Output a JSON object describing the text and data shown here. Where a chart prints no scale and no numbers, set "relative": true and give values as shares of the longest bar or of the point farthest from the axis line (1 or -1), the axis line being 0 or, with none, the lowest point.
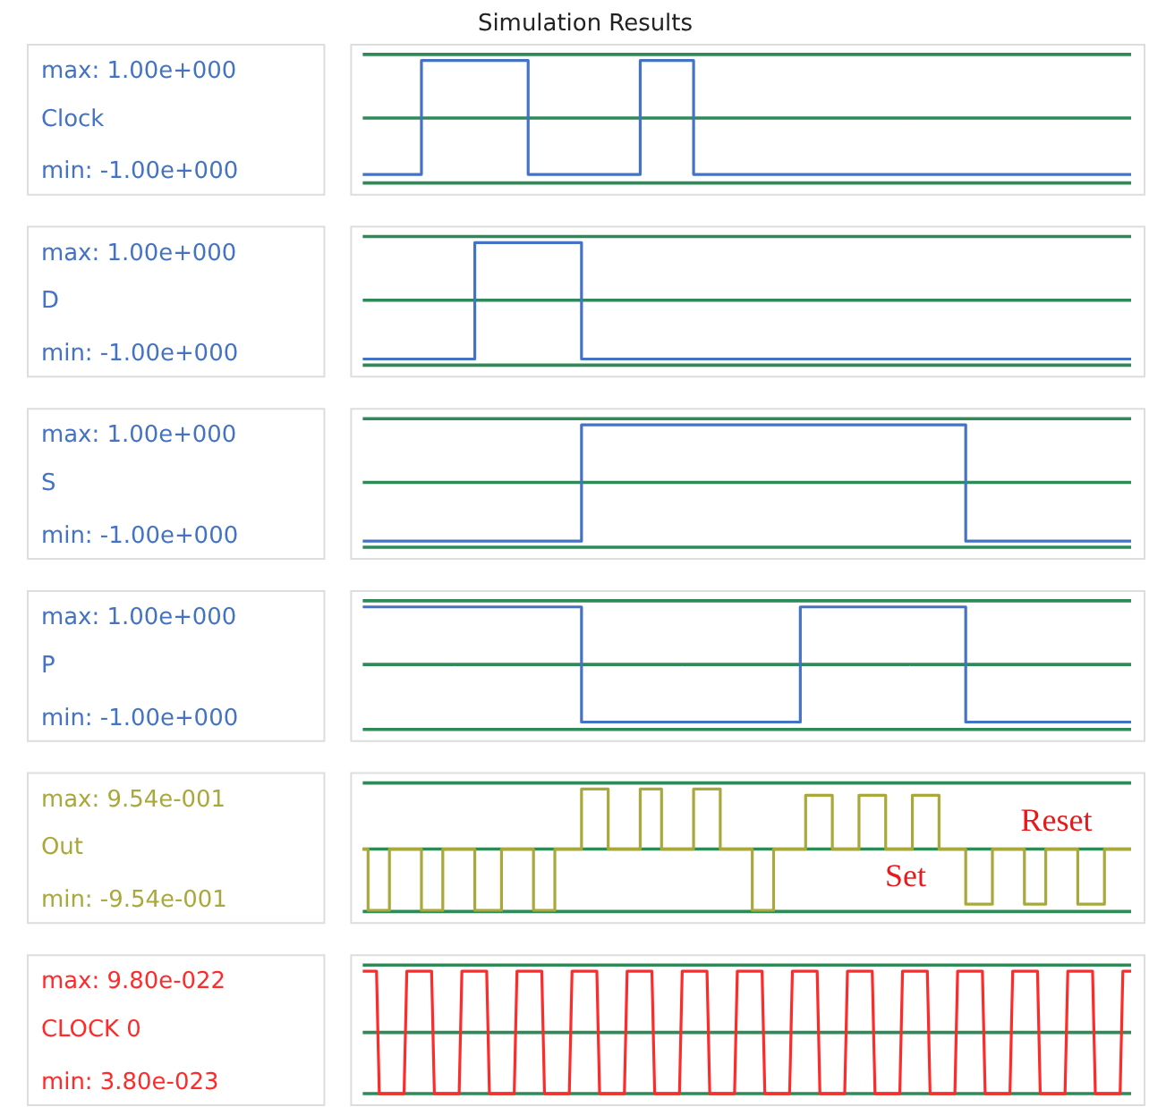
{
  "chart_data": [
    {
      "type": "step",
      "title": "Simulation Results",
      "ylabel": "Clock",
      "relative": true,
      "tick_labels": false,
      "annotations": [
        "max: 1.00e+000",
        "min: -1.00e+000"
      ],
      "categories": [
        null,
        null,
        null,
        null,
        null,
        null,
        null,
        null,
        null,
        null,
        null,
        null,
        null,
        null,
        null,
        null,
        null,
        null,
        null,
        null,
        null,
        null,
        null,
        null,
        null,
        null,
        null,
        null,
        null,
        null,
        null,
        null,
        null,
        null,
        null,
        null,
        null,
        null,
        null,
        null,
        null,
        null,
        null,
        null,
        null,
        null,
        null,
        null,
        null,
        null,
        null,
        null,
        null,
        null,
        null,
        null,
        null,
        null,
        null,
        null,
        null,
        null,
        null,
        null,
        null,
        null,
        null,
        null,
        null,
        null,
        null,
        null,
        null,
        null,
        null,
        null,
        null,
        null,
        null,
        null,
        null,
        null,
        null,
        null,
        null,
        null,
        null,
        null,
        null,
        null,
        null,
        null,
        null,
        null,
        null,
        null,
        null,
        null,
        null,
        null,
        null,
        null,
        null,
        null,
        null,
        null,
        null,
        null,
        null,
        null,
        null,
        null,
        null,
        null,
        null,
        null,
        null,
        null,
        null,
        null,
        null,
        null,
        null,
        null,
        null,
        null,
        null,
        null,
        null,
        null,
        null,
        null,
        null,
        null,
        null,
        null,
        null,
        null,
        null,
        null,
        null,
        null,
        null,
        null,
        null
      ],
      "series": [
        {
          "color": "#4472c4",
          "values": [
            0.07,
            0.07,
            0.07,
            0.07,
            0.07,
            0.07,
            0.07,
            0.07,
            0.07,
            0.07,
            0.07,
            1,
            1,
            1,
            1,
            1,
            1,
            1,
            1,
            1,
            1,
            1,
            1,
            1,
            1,
            1,
            1,
            1,
            1,
            1,
            1,
            0.07,
            0.07,
            0.07,
            0.07,
            0.07,
            0.07,
            0.07,
            0.07,
            0.07,
            0.07,
            0.07,
            0.07,
            0.07,
            0.07,
            0.07,
            0.07,
            0.07,
            0.07,
            0.07,
            0.07,
            0.07,
            1,
            1,
            1,
            1,
            1,
            1,
            1,
            1,
            1,
            1,
            0.07,
            0.07,
            0.07,
            0.07,
            0.07,
            0.07,
            0.07,
            0.07,
            0.07,
            0.07,
            0.07,
            0.07,
            0.07,
            0.07,
            0.07,
            0.07,
            0.07,
            0.07,
            0.07,
            0.07,
            0.07,
            0.07,
            0.07,
            0.07,
            0.07,
            0.07,
            0.07,
            0.07,
            0.07,
            0.07,
            0.07,
            0.07,
            0.07,
            0.07,
            0.07,
            0.07,
            0.07,
            0.07,
            0.07,
            0.07,
            0.07,
            0.07,
            0.07,
            0.07,
            0.07,
            0.07,
            0.07,
            0.07,
            0.07,
            0.07,
            0.07,
            0.07,
            0.07,
            0.07,
            0.07,
            0.07,
            0.07,
            0.07,
            0.07,
            0.07,
            0.07,
            0.07,
            0.07,
            0.07,
            0.07,
            0.07,
            0.07,
            0.07,
            0.07,
            0.07,
            0.07,
            0.07,
            0.07,
            0.07,
            0.07,
            0.07,
            0.07,
            0.07,
            0.07,
            0.07,
            0.07,
            0.07,
            0.07
          ]
        }
      ],
      "ref_lines": [
        {
          "axis": "y",
          "value": 0.53,
          "color": "#2e8b57"
        }
      ]
    },
    {
      "type": "step",
      "ylabel": "D",
      "relative": true,
      "tick_labels": false,
      "annotations": [
        "max: 1.00e+000",
        "min: -1.00e+000"
      ],
      "categories": [
        null,
        null,
        null,
        null,
        null,
        null,
        null,
        null,
        null,
        null,
        null,
        null,
        null,
        null,
        null,
        null,
        null,
        null,
        null,
        null,
        null,
        null,
        null,
        null,
        null,
        null,
        null,
        null,
        null,
        null,
        null,
        null,
        null,
        null,
        null,
        null,
        null,
        null,
        null,
        null,
        null,
        null,
        null,
        null,
        null,
        null,
        null,
        null,
        null,
        null,
        null,
        null,
        null,
        null,
        null,
        null,
        null,
        null,
        null,
        null,
        null,
        null,
        null,
        null,
        null,
        null,
        null,
        null,
        null,
        null,
        null,
        null,
        null,
        null,
        null,
        null,
        null,
        null,
        null,
        null,
        null,
        null,
        null,
        null,
        null,
        null,
        null,
        null,
        null,
        null,
        null,
        null,
        null,
        null,
        null,
        null,
        null,
        null,
        null,
        null,
        null,
        null,
        null,
        null,
        null,
        null,
        null,
        null,
        null,
        null,
        null,
        null,
        null,
        null,
        null,
        null,
        null,
        null,
        null,
        null,
        null,
        null,
        null,
        null,
        null,
        null,
        null,
        null,
        null,
        null,
        null,
        null,
        null,
        null,
        null,
        null,
        null,
        null,
        null,
        null,
        null,
        null,
        null,
        null,
        null
      ],
      "series": [
        {
          "color": "#4472c4",
          "values": [
            0.05,
            0.05,
            0.05,
            0.05,
            0.05,
            0.05,
            0.05,
            0.05,
            0.05,
            0.05,
            0.05,
            0.05,
            0.05,
            0.05,
            0.05,
            0.05,
            0.05,
            0.05,
            0.05,
            0.05,
            0.05,
            1,
            1,
            1,
            1,
            1,
            1,
            1,
            1,
            1,
            1,
            1,
            1,
            1,
            1,
            1,
            1,
            1,
            1,
            1,
            1,
            0.05,
            0.05,
            0.05,
            0.05,
            0.05,
            0.05,
            0.05,
            0.05,
            0.05,
            0.05,
            0.05,
            0.05,
            0.05,
            0.05,
            0.05,
            0.05,
            0.05,
            0.05,
            0.05,
            0.05,
            0.05,
            0.05,
            0.05,
            0.05,
            0.05,
            0.05,
            0.05,
            0.05,
            0.05,
            0.05,
            0.05,
            0.05,
            0.05,
            0.05,
            0.05,
            0.05,
            0.05,
            0.05,
            0.05,
            0.05,
            0.05,
            0.05,
            0.05,
            0.05,
            0.05,
            0.05,
            0.05,
            0.05,
            0.05,
            0.05,
            0.05,
            0.05,
            0.05,
            0.05,
            0.05,
            0.05,
            0.05,
            0.05,
            0.05,
            0.05,
            0.05,
            0.05,
            0.05,
            0.05,
            0.05,
            0.05,
            0.05,
            0.05,
            0.05,
            0.05,
            0.05,
            0.05,
            0.05,
            0.05,
            0.05,
            0.05,
            0.05,
            0.05,
            0.05,
            0.05,
            0.05,
            0.05,
            0.05,
            0.05,
            0.05,
            0.05,
            0.05,
            0.05,
            0.05,
            0.05,
            0.05,
            0.05,
            0.05,
            0.05,
            0.05,
            0.05,
            0.05,
            0.05,
            0.05,
            0.05,
            0.05,
            0.05,
            0.05,
            0.05
          ]
        }
      ],
      "ref_lines": [
        {
          "axis": "y",
          "value": 0.53,
          "color": "#2e8b57"
        }
      ]
    },
    {
      "type": "step",
      "ylabel": "S",
      "relative": true,
      "tick_labels": false,
      "annotations": [
        "max: 1.00e+000",
        "min: -1.00e+000"
      ],
      "categories": [
        null,
        null,
        null,
        null,
        null,
        null,
        null,
        null,
        null,
        null,
        null,
        null,
        null,
        null,
        null,
        null,
        null,
        null,
        null,
        null,
        null,
        null,
        null,
        null,
        null,
        null,
        null,
        null,
        null,
        null,
        null,
        null,
        null,
        null,
        null,
        null,
        null,
        null,
        null,
        null,
        null,
        null,
        null,
        null,
        null,
        null,
        null,
        null,
        null,
        null,
        null,
        null,
        null,
        null,
        null,
        null,
        null,
        null,
        null,
        null,
        null,
        null,
        null,
        null,
        null,
        null,
        null,
        null,
        null,
        null,
        null,
        null,
        null,
        null,
        null,
        null,
        null,
        null,
        null,
        null,
        null,
        null,
        null,
        null,
        null,
        null,
        null,
        null,
        null,
        null,
        null,
        null,
        null,
        null,
        null,
        null,
        null,
        null,
        null,
        null,
        null,
        null,
        null,
        null,
        null,
        null,
        null,
        null,
        null,
        null,
        null,
        null,
        null,
        null,
        null,
        null,
        null,
        null,
        null,
        null,
        null,
        null,
        null,
        null,
        null,
        null,
        null,
        null,
        null,
        null,
        null,
        null,
        null,
        null,
        null,
        null,
        null,
        null,
        null,
        null,
        null,
        null,
        null,
        null,
        null
      ],
      "series": [
        {
          "color": "#4472c4",
          "values": [
            0.05,
            0.05,
            0.05,
            0.05,
            0.05,
            0.05,
            0.05,
            0.05,
            0.05,
            0.05,
            0.05,
            0.05,
            0.05,
            0.05,
            0.05,
            0.05,
            0.05,
            0.05,
            0.05,
            0.05,
            0.05,
            0.05,
            0.05,
            0.05,
            0.05,
            0.05,
            0.05,
            0.05,
            0.05,
            0.05,
            0.05,
            0.05,
            0.05,
            0.05,
            0.05,
            0.05,
            0.05,
            0.05,
            0.05,
            0.05,
            0.05,
            1,
            1,
            1,
            1,
            1,
            1,
            1,
            1,
            1,
            1,
            1,
            1,
            1,
            1,
            1,
            1,
            1,
            1,
            1,
            1,
            1,
            1,
            1,
            1,
            1,
            1,
            1,
            1,
            1,
            1,
            1,
            1,
            1,
            1,
            1,
            1,
            1,
            1,
            1,
            1,
            1,
            1,
            1,
            1,
            1,
            1,
            1,
            1,
            1,
            1,
            1,
            1,
            1,
            1,
            1,
            1,
            1,
            1,
            1,
            1,
            1,
            1,
            1,
            1,
            1,
            1,
            1,
            1,
            1,
            1,
            1,
            1,
            0.05,
            0.05,
            0.05,
            0.05,
            0.05,
            0.05,
            0.05,
            0.05,
            0.05,
            0.05,
            0.05,
            0.05,
            0.05,
            0.05,
            0.05,
            0.05,
            0.05,
            0.05,
            0.05,
            0.05,
            0.05,
            0.05,
            0.05,
            0.05,
            0.05,
            0.05,
            0.05,
            0.05,
            0.05,
            0.05,
            0.05,
            0.05
          ]
        }
      ],
      "ref_lines": [
        {
          "axis": "y",
          "value": 0.53,
          "color": "#2e8b57"
        }
      ]
    },
    {
      "type": "step",
      "ylabel": "P",
      "relative": true,
      "tick_labels": false,
      "annotations": [
        "max: 1.00e+000",
        "min: -1.00e+000"
      ],
      "categories": [
        null,
        null,
        null,
        null,
        null,
        null,
        null,
        null,
        null,
        null,
        null,
        null,
        null,
        null,
        null,
        null,
        null,
        null,
        null,
        null,
        null,
        null,
        null,
        null,
        null,
        null,
        null,
        null,
        null,
        null,
        null,
        null,
        null,
        null,
        null,
        null,
        null,
        null,
        null,
        null,
        null,
        null,
        null,
        null,
        null,
        null,
        null,
        null,
        null,
        null,
        null,
        null,
        null,
        null,
        null,
        null,
        null,
        null,
        null,
        null,
        null,
        null,
        null,
        null,
        null,
        null,
        null,
        null,
        null,
        null,
        null,
        null,
        null,
        null,
        null,
        null,
        null,
        null,
        null,
        null,
        null,
        null,
        null,
        null,
        null,
        null,
        null,
        null,
        null,
        null,
        null,
        null,
        null,
        null,
        null,
        null,
        null,
        null,
        null,
        null,
        null,
        null,
        null,
        null,
        null,
        null,
        null,
        null,
        null,
        null,
        null,
        null,
        null,
        null,
        null,
        null,
        null,
        null,
        null,
        null,
        null,
        null,
        null,
        null,
        null,
        null,
        null,
        null,
        null,
        null,
        null,
        null,
        null,
        null,
        null,
        null,
        null,
        null,
        null,
        null,
        null,
        null,
        null,
        null,
        null
      ],
      "series": [
        {
          "color": "#4472c4",
          "values": [
            1,
            1,
            1,
            1,
            1,
            1,
            1,
            1,
            1,
            1,
            1,
            1,
            1,
            1,
            1,
            1,
            1,
            1,
            1,
            1,
            1,
            1,
            1,
            1,
            1,
            1,
            1,
            1,
            1,
            1,
            1,
            1,
            1,
            1,
            1,
            1,
            1,
            1,
            1,
            1,
            1,
            0.06,
            0.06,
            0.06,
            0.06,
            0.06,
            0.06,
            0.06,
            0.06,
            0.06,
            0.06,
            0.06,
            0.06,
            0.06,
            0.06,
            0.06,
            0.06,
            0.06,
            0.06,
            0.06,
            0.06,
            0.06,
            0.06,
            0.06,
            0.06,
            0.06,
            0.06,
            0.06,
            0.06,
            0.06,
            0.06,
            0.06,
            0.06,
            0.06,
            0.06,
            0.06,
            0.06,
            0.06,
            0.06,
            0.06,
            0.06,
            0.06,
            1,
            1,
            1,
            1,
            1,
            1,
            1,
            1,
            1,
            1,
            1,
            1,
            1,
            1,
            1,
            1,
            1,
            1,
            1,
            1,
            1,
            1,
            1,
            1,
            1,
            1,
            1,
            1,
            1,
            1,
            1,
            0.06,
            0.06,
            0.06,
            0.06,
            0.06,
            0.06,
            0.06,
            0.06,
            0.06,
            0.06,
            0.06,
            0.06,
            0.06,
            0.06,
            0.06,
            0.06,
            0.06,
            0.06,
            0.06,
            0.06,
            0.06,
            0.06,
            0.06,
            0.06,
            0.06,
            0.06,
            0.06,
            0.06,
            0.06,
            0.06,
            0.06,
            0.06
          ]
        }
      ],
      "ref_lines": [
        {
          "axis": "y",
          "value": 0.53,
          "color": "#2e8b57"
        }
      ]
    },
    {
      "type": "step",
      "ylabel": "Out",
      "relative": true,
      "tick_labels": false,
      "annotations": [
        "max: 9.54e-001",
        "min: -9.54e-001",
        "Reset",
        "Set"
      ],
      "categories": [
        null,
        null,
        null,
        null,
        null,
        null,
        null,
        null,
        null,
        null,
        null,
        null,
        null,
        null,
        null,
        null,
        null,
        null,
        null,
        null,
        null,
        null,
        null,
        null,
        null,
        null,
        null,
        null,
        null,
        null,
        null,
        null,
        null,
        null,
        null,
        null,
        null,
        null,
        null,
        null,
        null,
        null,
        null,
        null,
        null,
        null,
        null,
        null,
        null,
        null,
        null,
        null,
        null,
        null,
        null,
        null,
        null,
        null,
        null,
        null,
        null,
        null,
        null,
        null,
        null,
        null,
        null,
        null,
        null,
        null,
        null,
        null,
        null,
        null,
        null,
        null,
        null,
        null,
        null,
        null,
        null,
        null,
        null,
        null,
        null,
        null,
        null,
        null,
        null,
        null,
        null,
        null,
        null,
        null,
        null,
        null,
        null,
        null,
        null,
        null,
        null,
        null,
        null,
        null,
        null,
        null,
        null,
        null,
        null,
        null,
        null,
        null,
        null,
        null,
        null,
        null,
        null,
        null,
        null,
        null,
        null,
        null,
        null,
        null,
        null,
        null,
        null,
        null,
        null,
        null,
        null,
        null,
        null,
        null,
        null,
        null,
        null,
        null,
        null,
        null,
        null,
        null,
        null,
        null,
        null
      ],
      "series": [
        {
          "color": "#a9a83a",
          "values": [
            0.51,
            0.01,
            0.01,
            0.01,
            0.01,
            0.51,
            0.51,
            0.51,
            0.51,
            0.51,
            0.51,
            0.01,
            0.01,
            0.01,
            0.01,
            0.51,
            0.51,
            0.51,
            0.51,
            0.51,
            0.51,
            0.01,
            0.01,
            0.01,
            0.01,
            0.01,
            0.51,
            0.51,
            0.51,
            0.51,
            0.51,
            0.51,
            0.01,
            0.01,
            0.01,
            0.01,
            0.51,
            0.51,
            0.51,
            0.51,
            0.51,
            1,
            1,
            1,
            1,
            1,
            0.51,
            0.51,
            0.51,
            0.51,
            0.51,
            0.51,
            1,
            1,
            1,
            1,
            0.51,
            0.51,
            0.51,
            0.51,
            0.51,
            0.51,
            1,
            1,
            1,
            1,
            1,
            0.51,
            0.51,
            0.51,
            0.51,
            0.51,
            0.51,
            0.01,
            0.01,
            0.01,
            0.01,
            0.51,
            0.51,
            0.51,
            0.51,
            0.51,
            0.51,
            0.95,
            0.95,
            0.95,
            0.95,
            0.95,
            0.51,
            0.51,
            0.51,
            0.51,
            0.51,
            0.95,
            0.95,
            0.95,
            0.95,
            0.95,
            0.51,
            0.51,
            0.51,
            0.51,
            0.51,
            0.95,
            0.95,
            0.95,
            0.95,
            0.95,
            0.51,
            0.51,
            0.51,
            0.51,
            0.51,
            0.06,
            0.06,
            0.06,
            0.06,
            0.06,
            0.51,
            0.51,
            0.51,
            0.51,
            0.51,
            0.51,
            0.06,
            0.06,
            0.06,
            0.06,
            0.51,
            0.51,
            0.51,
            0.51,
            0.51,
            0.51,
            0.06,
            0.06,
            0.06,
            0.06,
            0.06,
            0.51,
            0.51,
            0.51,
            0.51,
            0.51,
            0.51
          ]
        }
      ],
      "ref_lines": [
        {
          "axis": "y",
          "value": 0.51,
          "color": "#2e8b57"
        }
      ]
    },
    {
      "type": "line",
      "ylabel": "CLOCK 0",
      "relative": true,
      "tick_labels": false,
      "annotations": [
        "max: 9.80e-022",
        "min: 3.80e-023"
      ],
      "categories": [
        null,
        null,
        null,
        null,
        null,
        null,
        null,
        null,
        null,
        null,
        null,
        null,
        null,
        null,
        null,
        null,
        null,
        null,
        null,
        null,
        null,
        null,
        null,
        null,
        null,
        null,
        null,
        null,
        null,
        null,
        null,
        null,
        null,
        null,
        null,
        null,
        null,
        null,
        null,
        null,
        null,
        null,
        null,
        null,
        null,
        null,
        null,
        null,
        null,
        null,
        null,
        null,
        null,
        null,
        null,
        null,
        null,
        null,
        null,
        null,
        null,
        null,
        null,
        null,
        null,
        null,
        null,
        null,
        null,
        null,
        null,
        null,
        null,
        null,
        null,
        null,
        null,
        null,
        null,
        null,
        null,
        null,
        null,
        null,
        null,
        null,
        null,
        null,
        null,
        null,
        null,
        null,
        null,
        null,
        null,
        null,
        null,
        null,
        null,
        null,
        null,
        null,
        null,
        null,
        null,
        null,
        null,
        null,
        null,
        null,
        null,
        null,
        null,
        null,
        null,
        null,
        null,
        null,
        null,
        null,
        null,
        null,
        null,
        null,
        null,
        null,
        null,
        null,
        null,
        null,
        null,
        null,
        null,
        null,
        null,
        null,
        null,
        null,
        null,
        null,
        null,
        null,
        null,
        null,
        null,
        null,
        null,
        null,
        null,
        null,
        null,
        null,
        null,
        null,
        null,
        null,
        null,
        null,
        null,
        null,
        null,
        null,
        null,
        null,
        null,
        null,
        null,
        null,
        null,
        null,
        null,
        null,
        null,
        null,
        null,
        null,
        null,
        null,
        null,
        null,
        null,
        null,
        null,
        null,
        null,
        null,
        null,
        null,
        null,
        null,
        null,
        null,
        null,
        null,
        null,
        null,
        null,
        null,
        null,
        null,
        null,
        null,
        null,
        null,
        null,
        null,
        null,
        null,
        null,
        null,
        null,
        null,
        null,
        null,
        null,
        null,
        null,
        null,
        null,
        null,
        null,
        null,
        null,
        null,
        null,
        null,
        null,
        null,
        null,
        null,
        null,
        null,
        null,
        null,
        null,
        null,
        null,
        null,
        null,
        null,
        null,
        null,
        null,
        null,
        null,
        null,
        null,
        null,
        null,
        null,
        null,
        null,
        null,
        null,
        null,
        null,
        null,
        null,
        null,
        null,
        null,
        null,
        null,
        null,
        null,
        null,
        null,
        null,
        null,
        null,
        null,
        null,
        null,
        null,
        null,
        null,
        null,
        null,
        null,
        null
      ],
      "series": [
        {
          "color": "#ff2a2a",
          "values": [
            1,
            1,
            1,
            1,
            1,
            1,
            0,
            0,
            0,
            0,
            0,
            0,
            0,
            0,
            0,
            0,
            1,
            1,
            1,
            1,
            1,
            1,
            1,
            1,
            1,
            1,
            0,
            0,
            0,
            0,
            0,
            0,
            0,
            0,
            0,
            0,
            1,
            1,
            1,
            1,
            1,
            1,
            1,
            1,
            1,
            1,
            0,
            0,
            0,
            0,
            0,
            0,
            0,
            0,
            0,
            0,
            1,
            1,
            1,
            1,
            1,
            1,
            1,
            1,
            1,
            1,
            0,
            0,
            0,
            0,
            0,
            0,
            0,
            0,
            0,
            0,
            1,
            1,
            1,
            1,
            1,
            1,
            1,
            1,
            1,
            1,
            0,
            0,
            0,
            0,
            0,
            0,
            0,
            0,
            0,
            0,
            1,
            1,
            1,
            1,
            1,
            1,
            1,
            1,
            1,
            1,
            0,
            0,
            0,
            0,
            0,
            0,
            0,
            0,
            0,
            0,
            1,
            1,
            1,
            1,
            1,
            1,
            1,
            1,
            1,
            1,
            0,
            0,
            0,
            0,
            0,
            0,
            0,
            0,
            0,
            0,
            1,
            1,
            1,
            1,
            1,
            1,
            1,
            1,
            1,
            1,
            0,
            0,
            0,
            0,
            0,
            0,
            0,
            0,
            0,
            0,
            1,
            1,
            1,
            1,
            1,
            1,
            1,
            1,
            1,
            1,
            0,
            0,
            0,
            0,
            0,
            0,
            0,
            0,
            0,
            0,
            1,
            1,
            1,
            1,
            1,
            1,
            1,
            1,
            1,
            1,
            0,
            0,
            0,
            0,
            0,
            0,
            0,
            0,
            0,
            0,
            1,
            1,
            1,
            1,
            1,
            1,
            1,
            1,
            1,
            1,
            0,
            0,
            0,
            0,
            0,
            0,
            0,
            0,
            0,
            0,
            1,
            1,
            1,
            1,
            1,
            1,
            1,
            1,
            1,
            1,
            0,
            0,
            0,
            0,
            0,
            0,
            0,
            0,
            0,
            0,
            1,
            1,
            1,
            1,
            1,
            1,
            1,
            1,
            1,
            1,
            0,
            0,
            0,
            0,
            0,
            0,
            0,
            0,
            0,
            0,
            1,
            1,
            1,
            1,
            1,
            1,
            1,
            1,
            1,
            1,
            0,
            0,
            0,
            0,
            0,
            0,
            0,
            0,
            0,
            0,
            1,
            1,
            1,
            1
          ]
        }
      ],
      "ref_lines": [
        {
          "axis": "y",
          "value": 0.5,
          "color": "#2e8b57"
        }
      ]
    }
  ]
}
